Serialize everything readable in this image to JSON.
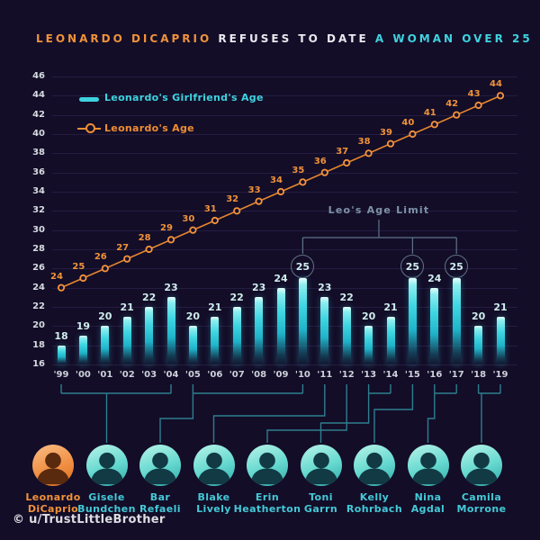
{
  "title": {
    "part1": "LEONARDO DICAPRIO",
    "part2": "REFUSES TO DATE",
    "part3": "A WOMAN OVER 25"
  },
  "legend": {
    "girlfriend_label": "Leonardo's Girlfriend's Age",
    "leo_label": "Leonardo's Age"
  },
  "annotation": {
    "label": "Leo's Age Limit",
    "circled_indices": [
      11,
      16,
      18
    ],
    "circled_years": [
      "'10",
      "'15",
      "'17"
    ]
  },
  "watermark": "© u/TrustLittleBrother",
  "colors": {
    "background": "#130d28",
    "bar_cyan": "#3ed3df",
    "line_orange": "#ee8d33",
    "grid": "#241d41",
    "axis_text": "#d6dbe0",
    "limit_grey": "#7f93a6",
    "connector_teal": "#2e7e8e",
    "name_cyan": "#44c9d6",
    "name_orange": "#f0923a"
  },
  "chart_data": {
    "type": "bar",
    "title": "Leonardo DiCaprio refuses to date a woman over 25",
    "categories": [
      "'99",
      "'00",
      "'01",
      "'02",
      "'03",
      "'04",
      "'05",
      "'06",
      "'07",
      "'08",
      "'09",
      "'10",
      "'11",
      "'12",
      "'13",
      "'14",
      "'15",
      "'16",
      "'17",
      "'18",
      "'19"
    ],
    "series": [
      {
        "name": "Leonardo's Girlfriend's Age",
        "type": "bar",
        "values": [
          18,
          19,
          20,
          21,
          22,
          23,
          20,
          21,
          22,
          23,
          24,
          25,
          23,
          22,
          20,
          21,
          25,
          24,
          25,
          20,
          21
        ]
      },
      {
        "name": "Leonardo's Age",
        "type": "line",
        "values": [
          24,
          25,
          26,
          27,
          28,
          29,
          30,
          31,
          32,
          33,
          34,
          35,
          36,
          37,
          38,
          39,
          40,
          41,
          42,
          43,
          44
        ]
      }
    ],
    "ylim": [
      16,
      46
    ],
    "ytick_step": 2,
    "grid": "horizontal",
    "legend_position": "top-left"
  },
  "people": [
    {
      "name": "Leonardo DiCaprio",
      "line1": "Leonardo",
      "line2": "DiCaprio",
      "is_leo": true
    },
    {
      "name": "Gisele Bundchen",
      "line1": "Gisele",
      "line2": "Bundchen",
      "is_leo": false
    },
    {
      "name": "Bar Refaeli",
      "line1": "Bar",
      "line2": "Refaeli",
      "is_leo": false
    },
    {
      "name": "Blake Lively",
      "line1": "Blake",
      "line2": "Lively",
      "is_leo": false
    },
    {
      "name": "Erin Heatherton",
      "line1": "Erin",
      "line2": "Heatherton",
      "is_leo": false
    },
    {
      "name": "Toni Garrn",
      "line1": "Toni",
      "line2": "Garrn",
      "is_leo": false
    },
    {
      "name": "Kelly Rohrbach",
      "line1": "Kelly",
      "line2": "Rohrbach",
      "is_leo": false
    },
    {
      "name": "Nina Agdal",
      "line1": "Nina",
      "line2": "Agdal",
      "is_leo": false
    },
    {
      "name": "Camila Morrone",
      "line1": "Camila",
      "line2": "Morrone",
      "is_leo": false
    }
  ],
  "connectors": [
    {
      "person": "Gisele Bundchen",
      "from": "'99",
      "to": "'04",
      "avatar": 1
    },
    {
      "person": "Bar Refaeli",
      "from": "'05",
      "to": "'10",
      "avatar": 2
    },
    {
      "person": "Blake Lively",
      "from": "'11",
      "to": "'11",
      "avatar": 3
    },
    {
      "person": "Erin Heatherton",
      "from": "'12",
      "to": "'12",
      "avatar": 4
    },
    {
      "person": "Toni Garrn",
      "from": "'13",
      "to": "'14",
      "avatar": 5
    },
    {
      "person": "Kelly Rohrbach",
      "from": "'15",
      "to": "'15",
      "avatar": 6
    },
    {
      "person": "Nina Agdal",
      "from": "'16",
      "to": "'17",
      "avatar": 7
    },
    {
      "person": "Camila Morrone",
      "from": "'18",
      "to": "'19",
      "avatar": 8
    }
  ]
}
